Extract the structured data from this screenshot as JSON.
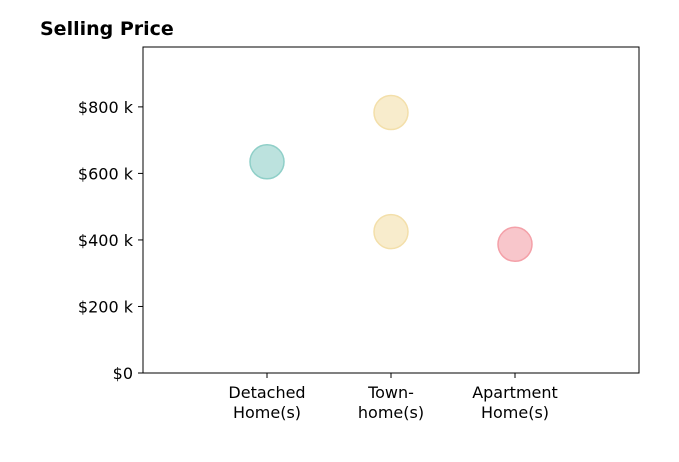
{
  "chart_data": {
    "type": "scatter",
    "title": "Selling Price",
    "xlabel": "",
    "ylabel": "",
    "categories": [
      [
        "Detached",
        "Home(s)"
      ],
      [
        "Town-",
        "home(s)"
      ],
      [
        "Apartment",
        "Home(s)"
      ]
    ],
    "y_ticks": [
      {
        "value": 0,
        "label": "$0"
      },
      {
        "value": 200000,
        "label": "$200 k"
      },
      {
        "value": 400000,
        "label": "$400 k"
      },
      {
        "value": 600000,
        "label": "$600 k"
      },
      {
        "value": 800000,
        "label": "$800 k"
      }
    ],
    "ylim": [
      0,
      980000
    ],
    "xlim": [
      -1,
      3
    ],
    "grid": false,
    "legend": "none",
    "points": [
      {
        "category": 0,
        "value": 635000,
        "color": "#8fcfc8"
      },
      {
        "category": 1,
        "value": 783000,
        "color": "#f3dfaa"
      },
      {
        "category": 1,
        "value": 425000,
        "color": "#f3dfaa"
      },
      {
        "category": 2,
        "value": 387000,
        "color": "#f4a0a8"
      }
    ]
  }
}
